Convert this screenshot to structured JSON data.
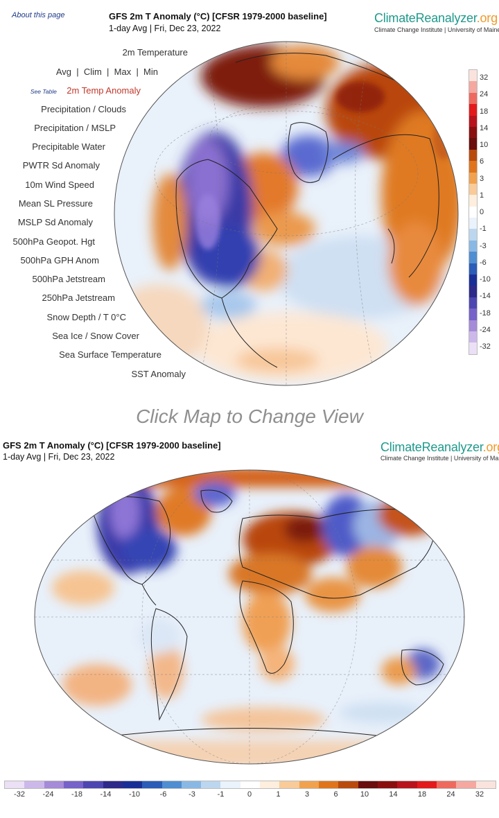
{
  "about_link": "About this page",
  "top": {
    "title": "GFS 2m T Anomaly (°C) [CFSR 1979-2000 baseline]",
    "subtitle": "1-day Avg | Fri, Dec 23, 2022",
    "logo_main": "ClimateReanalyzer",
    "logo_tld": ".org",
    "logo_sub": "Climate Change Institute | University of Maine"
  },
  "menu": {
    "see_table": "See Table",
    "stats": [
      "Avg",
      "Clim",
      "Max",
      "Min"
    ],
    "items": [
      "2m Temperature",
      "2m Temp Anomaly",
      "Precipitation / Clouds",
      "Precipitation / MSLP",
      "Precipitable Water",
      "PWTR Sd Anomaly",
      "10m Wind Speed",
      "Mean SL Pressure",
      "MSLP Sd Anomaly",
      "500hPa Geopot. Hgt",
      "500hPa GPH Anom",
      "500hPa Jetstream",
      "250hPa Jetstream",
      "Snow Depth / T 0°C",
      "Sea Ice / Snow Cover",
      "Sea Surface Temperature",
      "SST Anomaly"
    ]
  },
  "click_prompt": "Click Map to Change View",
  "bottom": {
    "title": "GFS 2m T Anomaly (°C) [CFSR 1979-2000 baseline]",
    "subtitle": "1-day Avg | Fri, Dec 23, 2022",
    "logo_main": "ClimateReanalyzer",
    "logo_tld": ".org",
    "logo_sub": "Climate Change Institute | University of Maine"
  },
  "legend": {
    "vertical_labels": [
      "32",
      "24",
      "18",
      "14",
      "10",
      "6",
      "3",
      "1",
      "0",
      "-1",
      "-3",
      "-6",
      "-10",
      "-14",
      "-18",
      "-24",
      "-32"
    ],
    "horizontal_labels": [
      "-32",
      "-24",
      "-18",
      "-14",
      "-10",
      "-6",
      "-3",
      "-1",
      "0",
      "1",
      "3",
      "6",
      "10",
      "14",
      "18",
      "24",
      "32"
    ],
    "colors_warm_to_cold": [
      "#fbe3dd",
      "#f4a8a0",
      "#ee6a5e",
      "#e31a1c",
      "#b8141d",
      "#8a1010",
      "#6a0e0e",
      "#b94a0d",
      "#e0741c",
      "#f1a24e",
      "#f8cb98",
      "#fdeedd",
      "#ffffff",
      "#eaf2fb",
      "#bcd6ef",
      "#8ab8e4",
      "#4f8ed1",
      "#2a5cb8",
      "#1a2f96",
      "#2e2a8a",
      "#4d46b0",
      "#7662c8",
      "#a58bd8",
      "#cdb8ea",
      "#ebe0f5"
    ]
  }
}
